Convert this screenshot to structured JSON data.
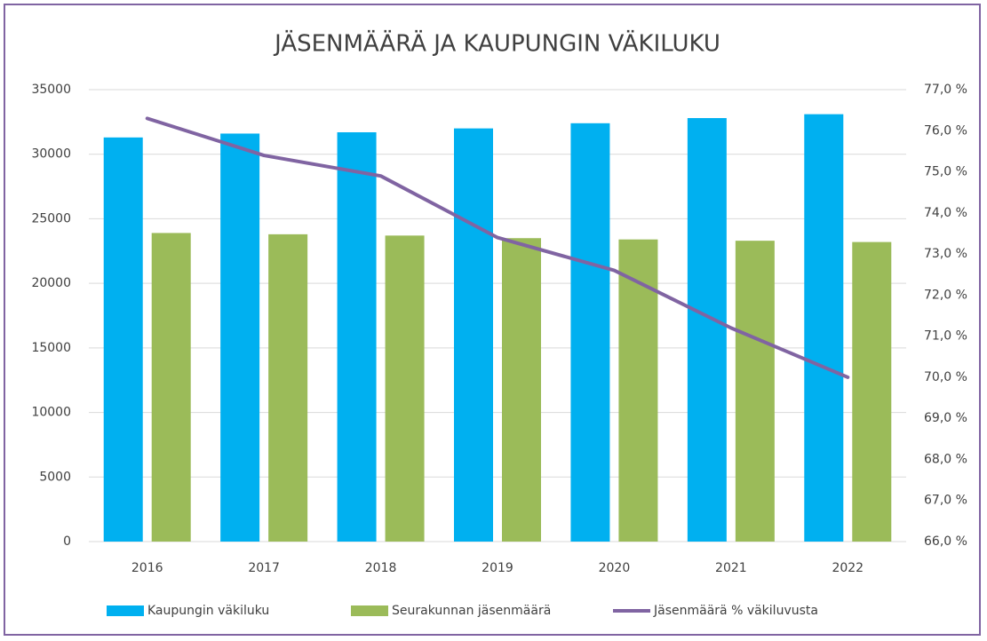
{
  "chart_data": {
    "type": "bar_line",
    "title": "JÄSENMÄÄRÄ JA KAUPUNGIN VÄKILUKU",
    "categories": [
      "2016",
      "2017",
      "2018",
      "2019",
      "2020",
      "2021",
      "2022"
    ],
    "series": [
      {
        "name": "Kaupungin väkiluku",
        "color": "#00b0f0",
        "type": "bar",
        "values": [
          31300,
          31600,
          31700,
          32000,
          32400,
          32800,
          33100
        ]
      },
      {
        "name": "Seurakunnan jäsenmäärä",
        "color": "#9bbb59",
        "type": "bar",
        "values": [
          23900,
          23800,
          23700,
          23500,
          23400,
          23300,
          23200
        ]
      },
      {
        "name": "Jäsenmäärä % väkiluvusta",
        "color": "#8064a2",
        "type": "line",
        "axis": "y2",
        "values": [
          76.3,
          75.4,
          74.9,
          73.4,
          72.6,
          71.2,
          70.0
        ]
      }
    ],
    "ylim": [
      0,
      35000
    ],
    "yticks": [
      0,
      5000,
      10000,
      15000,
      20000,
      25000,
      30000,
      35000
    ],
    "y2lim": [
      66,
      77
    ],
    "y2ticks": [
      {
        "value": 66,
        "label": "66,0 %"
      },
      {
        "value": 67,
        "label": "67,0 %"
      },
      {
        "value": 68,
        "label": "68,0 %"
      },
      {
        "value": 69,
        "label": "69,0 %"
      },
      {
        "value": 70,
        "label": "70,0 %"
      },
      {
        "value": 71,
        "label": "71,0 %"
      },
      {
        "value": 72,
        "label": "72,0 %"
      },
      {
        "value": 73,
        "label": "73,0 %"
      },
      {
        "value": 74,
        "label": "74,0 %"
      },
      {
        "value": 75,
        "label": "75,0 %"
      },
      {
        "value": 76,
        "label": "76,0 %"
      },
      {
        "value": 77,
        "label": "77,0 %"
      }
    ],
    "grid": true,
    "legend": "bottom"
  }
}
